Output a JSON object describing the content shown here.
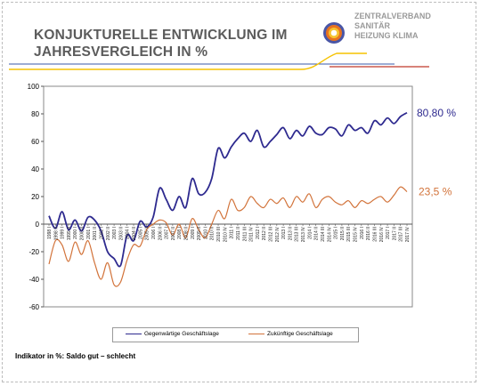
{
  "header": {
    "title_lines": [
      "KONJUKTURELLE ENTWICKLUNG IM",
      "JAHRESVERGLEICH IN %"
    ],
    "brand_lines": [
      "ZENTRALVERBAND",
      "SANITÄR",
      "HEIZUNG KLIMA"
    ]
  },
  "footnote": "Indikator in %: Saldo gut – schlecht",
  "colors": {
    "current": "#2e2a8f",
    "future": "#d2733a",
    "accent_yellow": "#f5c200",
    "accent_red": "#c0392b",
    "accent_blue": "#3a5aa8"
  },
  "chart_data": {
    "type": "line",
    "ylim": [
      -60,
      100
    ],
    "yticks": [
      100,
      80,
      60,
      40,
      20,
      0,
      -20,
      -40,
      -60
    ],
    "grid": false,
    "legend_position": "bottom",
    "x": [
      "1998 I",
      "1998 II",
      "1999 I",
      "1999 II",
      "2000 I",
      "2000 II",
      "2001 I",
      "2001 II",
      "2002 I",
      "2002 II",
      "2003 I",
      "2003 II",
      "2004 I",
      "2004 II",
      "2005 I",
      "2005 II",
      "2006 I",
      "2006 II",
      "2007 I",
      "2007 II",
      "2008 I",
      "2008 II",
      "2009 I",
      "2009 II",
      "2010 I",
      "2010 II",
      "2010 III",
      "2010 IV",
      "2011 I",
      "2011 II",
      "2011 III",
      "2011 IV",
      "2012 I",
      "2012 II",
      "2012 III",
      "2012 IV",
      "2013 I",
      "2013 II",
      "2013 III",
      "2013 IV",
      "2014 I",
      "2014 II",
      "2014 III",
      "2014 IV",
      "2015 I",
      "2015 II",
      "2015 III",
      "2015 IV",
      "2016 I",
      "2016 II",
      "2016 III",
      "2016 IV",
      "2017 I",
      "2017 II",
      "2017 III",
      "2017 IV"
    ],
    "series": [
      {
        "name": "Gegenwärtige Geschäftslage",
        "end_label": "80,80 %",
        "values": [
          6,
          -3,
          9,
          -4,
          3,
          -5,
          5,
          3,
          -5,
          -20,
          -25,
          -30,
          -8,
          -12,
          2,
          -2,
          5,
          26,
          18,
          10,
          20,
          12,
          33,
          22,
          23,
          33,
          55,
          48,
          56,
          62,
          66,
          60,
          68,
          56,
          60,
          65,
          70,
          62,
          68,
          64,
          71,
          66,
          65,
          70,
          69,
          64,
          72,
          68,
          70,
          66,
          75,
          72,
          77,
          73,
          78,
          80.8
        ]
      },
      {
        "name": "Zukünftige Geschäftslage",
        "end_label": "23,5 %",
        "values": [
          -29,
          -12,
          -15,
          -27,
          -13,
          -22,
          -12,
          -28,
          -40,
          -28,
          -44,
          -42,
          -26,
          -15,
          -16,
          -4,
          0,
          3,
          1,
          -8,
          0,
          -10,
          4,
          -4,
          -10,
          0,
          10,
          4,
          18,
          10,
          12,
          20,
          15,
          12,
          18,
          15,
          19,
          12,
          20,
          16,
          22,
          12,
          18,
          20,
          16,
          14,
          17,
          12,
          17,
          15,
          18,
          20,
          16,
          21,
          27,
          23.5
        ]
      }
    ]
  }
}
